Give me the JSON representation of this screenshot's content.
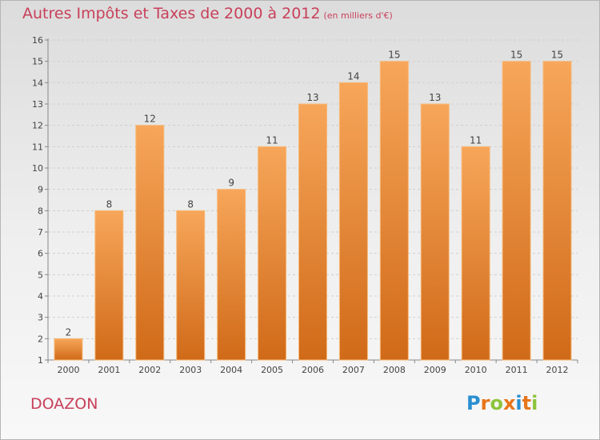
{
  "header": {
    "title": "Autres Impôts et Taxes de 2000 à 2012",
    "unit": "(en milliers d'€)"
  },
  "commune": "DOAZON",
  "logo": {
    "letters": [
      "P",
      "r",
      "o",
      "x",
      "i",
      "t",
      "i"
    ],
    "colors": [
      "#2a8fd0",
      "#e8751a",
      "#8cc43c",
      "#e8751a",
      "#2a8fd0",
      "#e8751a",
      "#8cc43c"
    ]
  },
  "chart_data": {
    "type": "bar",
    "categories": [
      "2000",
      "2001",
      "2002",
      "2003",
      "2004",
      "2005",
      "2006",
      "2007",
      "2008",
      "2009",
      "2010",
      "2011",
      "2012"
    ],
    "values": [
      2,
      8,
      12,
      8,
      9,
      11,
      13,
      14,
      15,
      13,
      11,
      15,
      15
    ],
    "data_labels": [
      "2",
      "8",
      "12",
      "8",
      "9",
      "11",
      "13",
      "14",
      "15",
      "13",
      "11",
      "15",
      "15"
    ],
    "yticks": [
      "1",
      "2",
      "3",
      "4",
      "5",
      "6",
      "7",
      "8",
      "9",
      "10",
      "11",
      "12",
      "13",
      "14",
      "15",
      "16"
    ],
    "ylim": [
      1,
      16
    ],
    "grid": true,
    "bar_color": "#f0923a"
  }
}
